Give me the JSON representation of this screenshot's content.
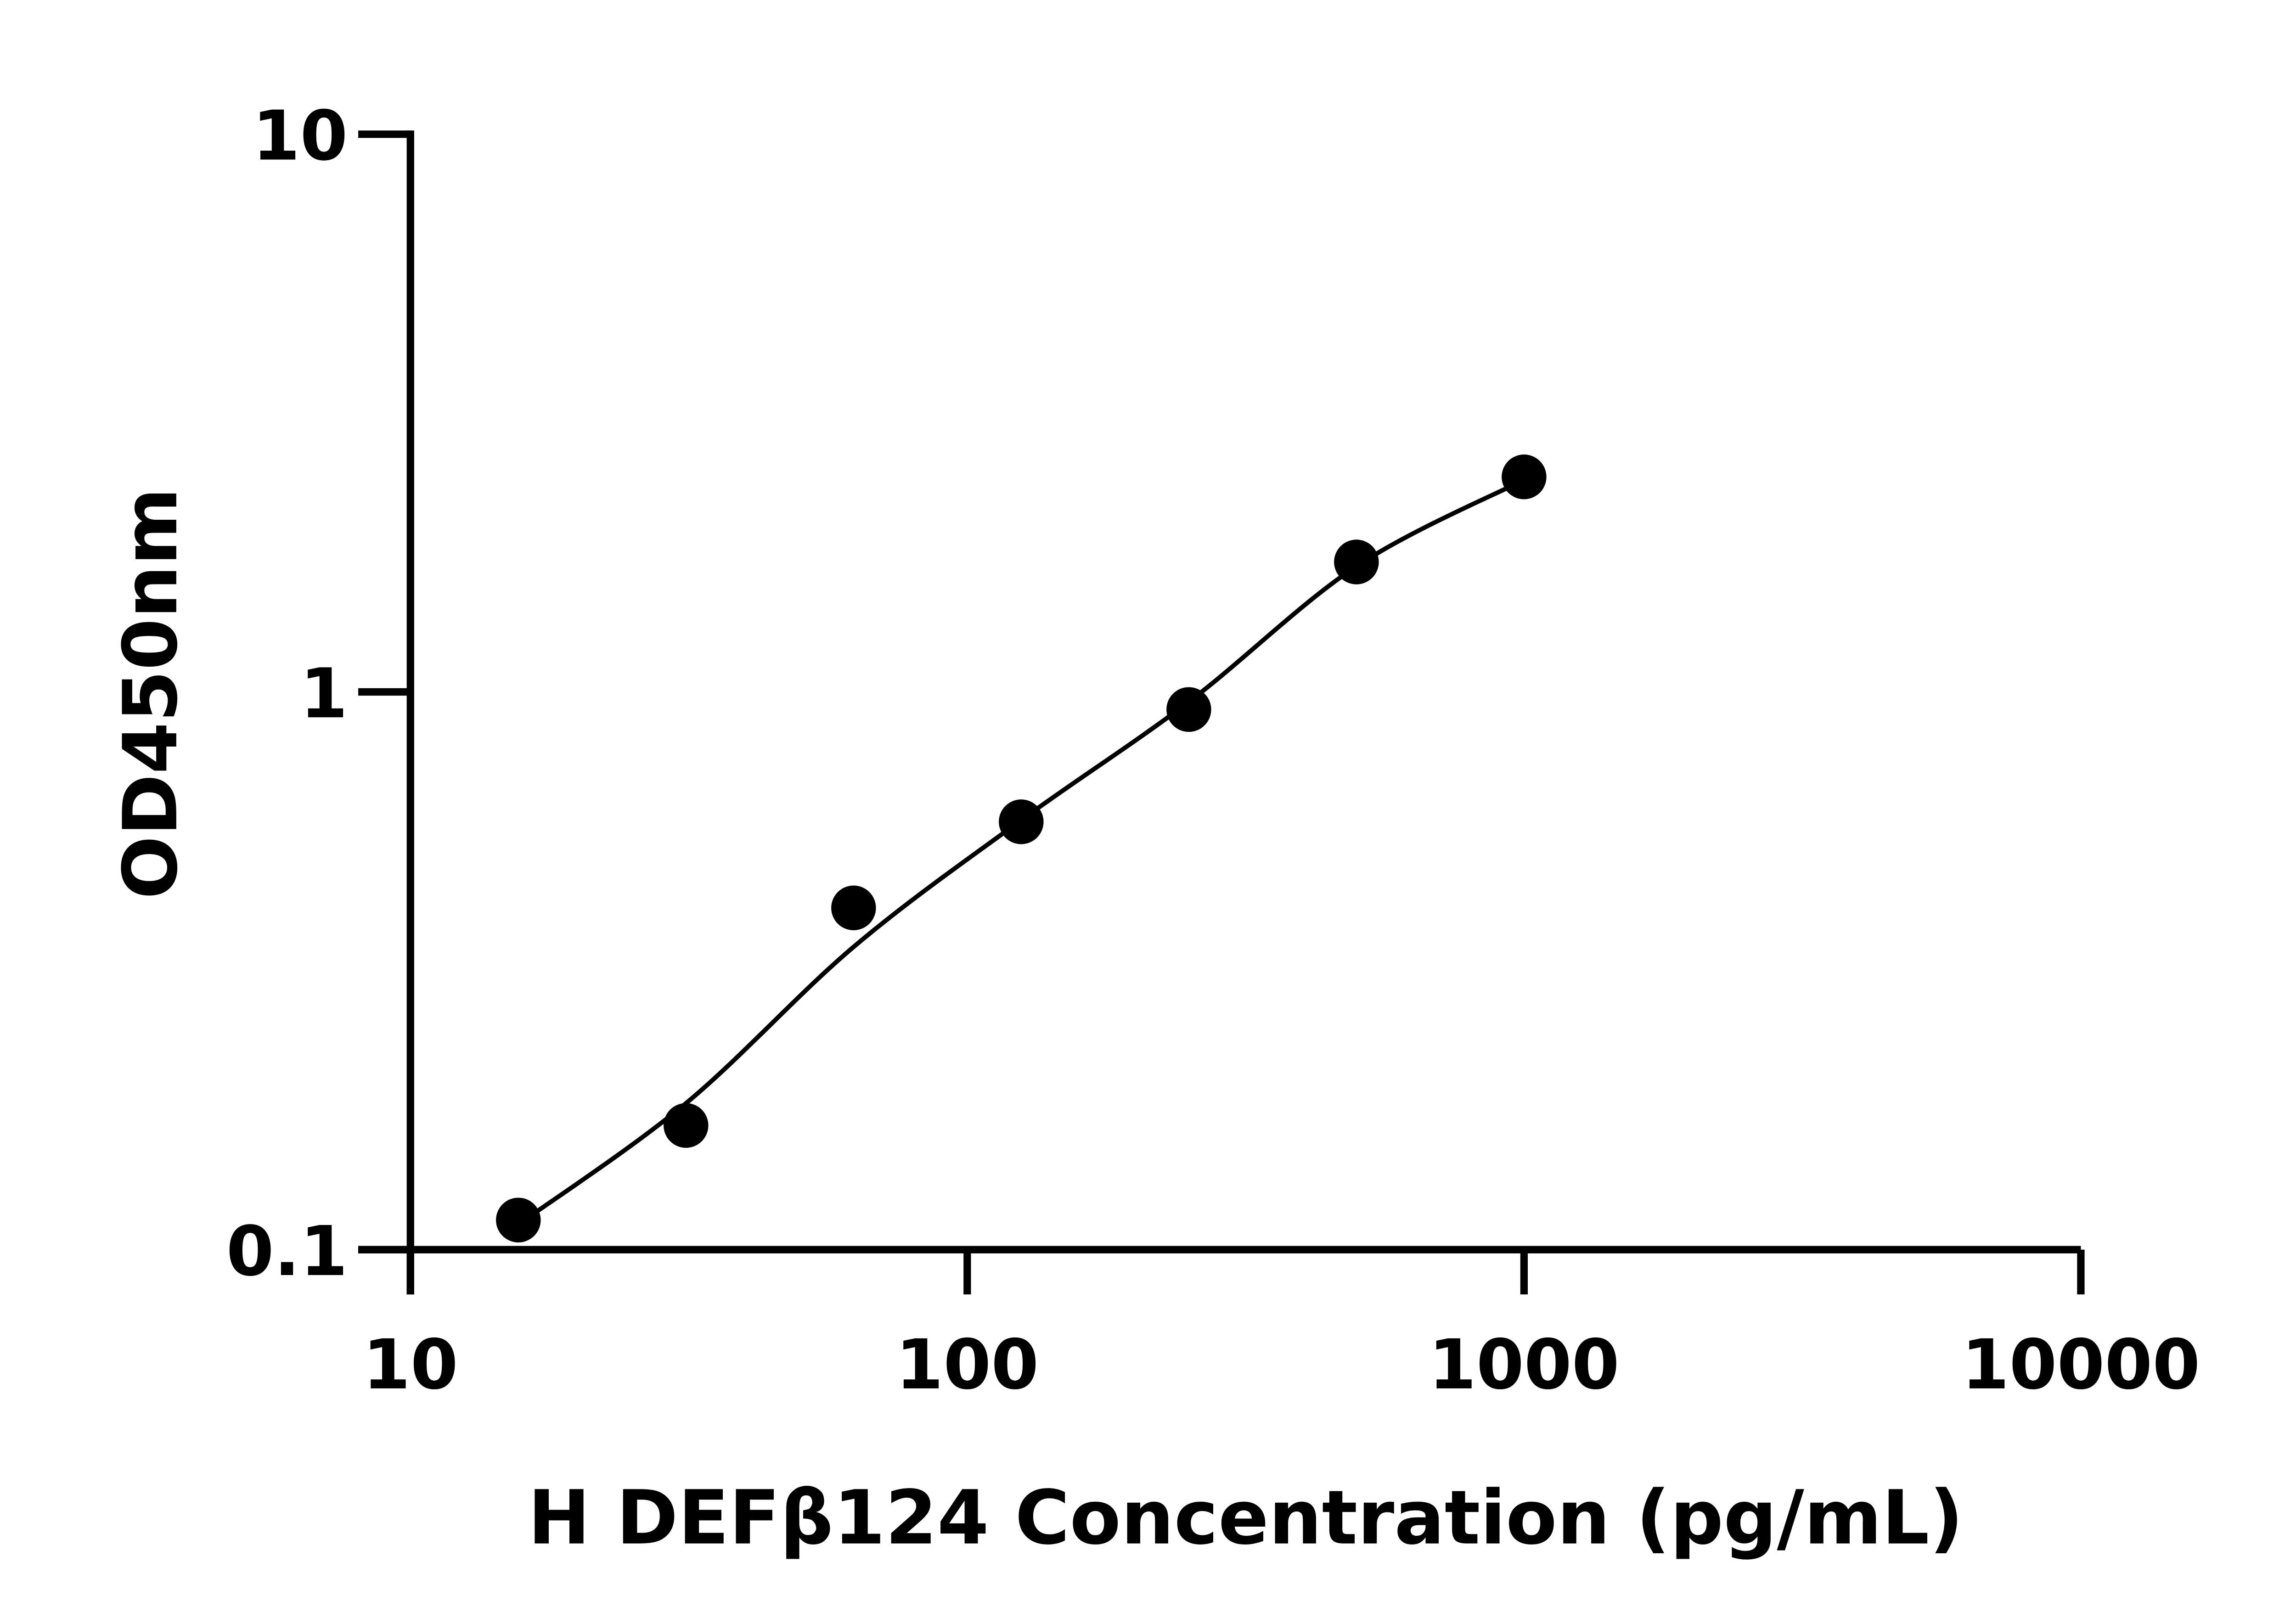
{
  "chart_data": {
    "type": "scatter",
    "x_label": "H DEFβ124 Concentration (pg/mL)",
    "y_label": "OD450nm",
    "x": [
      15.625,
      31.25,
      62.5,
      125,
      250,
      500,
      1000
    ],
    "values": [
      0.113,
      0.167,
      0.41,
      0.585,
      0.93,
      1.71,
      2.43
    ],
    "color": "#000000",
    "curve": {
      "x": [
        15.625,
        31.25,
        62.5,
        125,
        250,
        500,
        1000
      ],
      "values": [
        0.111,
        0.183,
        0.349,
        0.589,
        0.96,
        1.68,
        2.4
      ]
    },
    "xlim": [
      10,
      10000
    ],
    "ylim": [
      0.1,
      10
    ],
    "xticks": [
      10,
      100,
      1000,
      10000
    ],
    "yticks": [
      0.1,
      1,
      10
    ],
    "x_log": true,
    "y_log": true
  }
}
